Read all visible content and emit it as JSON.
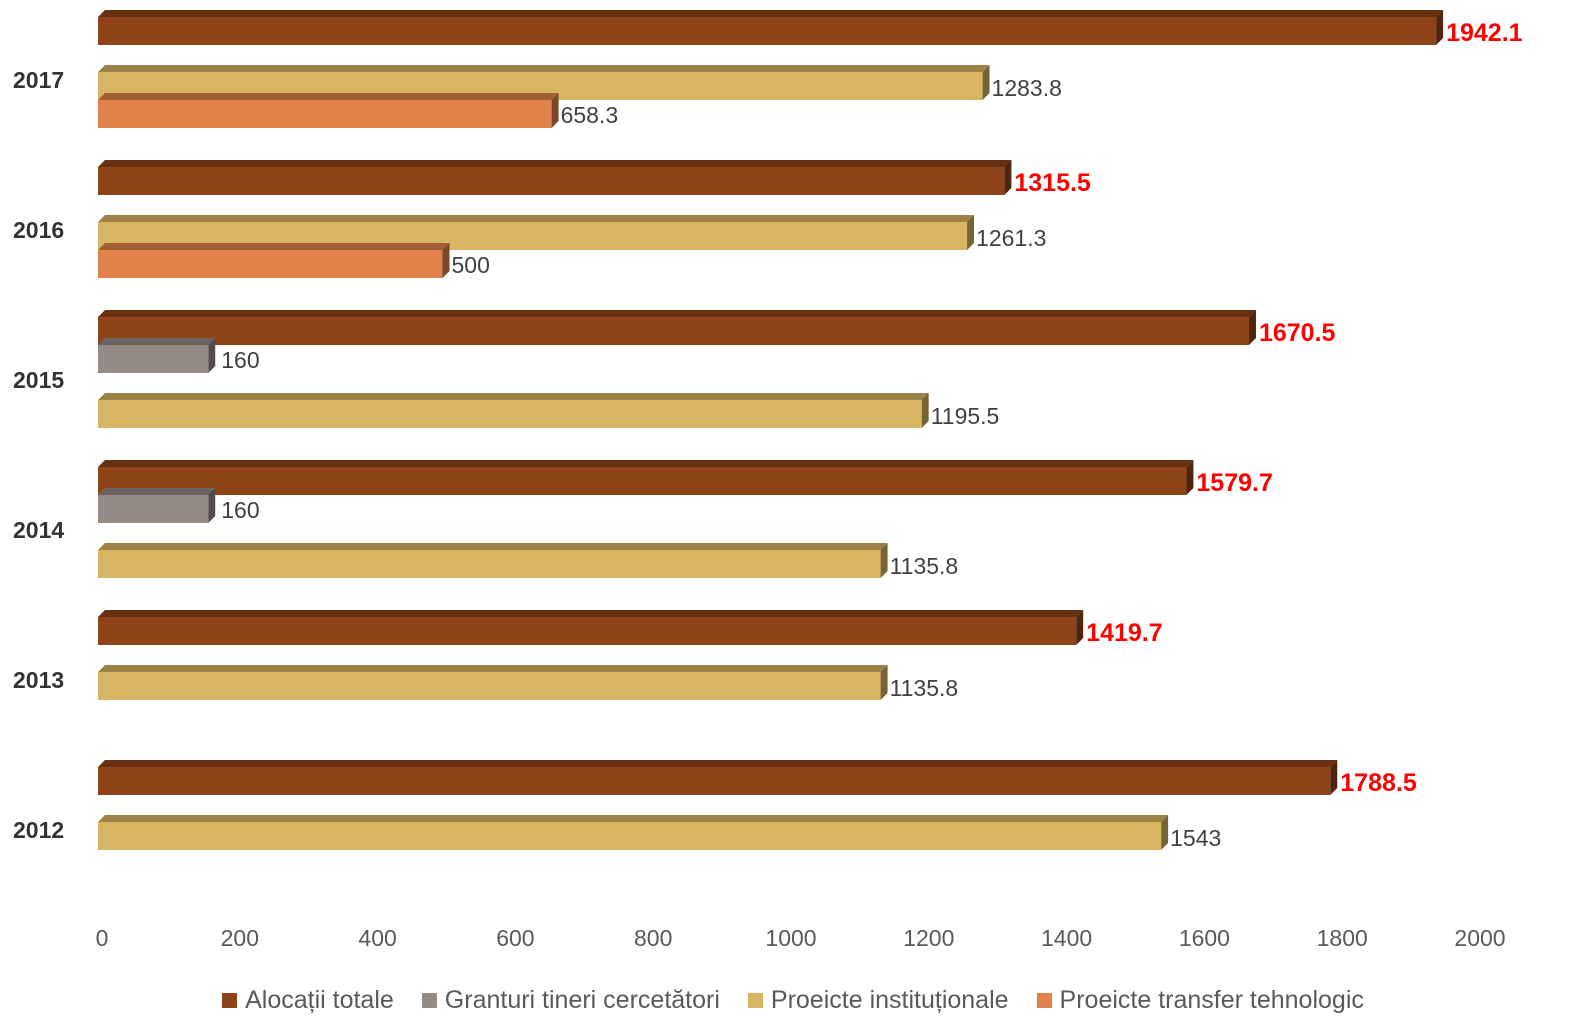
{
  "chart_data": {
    "type": "bar",
    "orientation": "horizontal",
    "style": "3d",
    "categories": [
      "2017",
      "2016",
      "2015",
      "2014",
      "2013",
      "2012"
    ],
    "series": [
      {
        "name": "Alocații totale",
        "color": "#8e4318",
        "values": [
          1942.1,
          1315.5,
          1670.5,
          1579.7,
          1419.7,
          1788.5
        ]
      },
      {
        "name": "Granturi tineri cercetători",
        "color": "#958b86",
        "values": [
          null,
          null,
          160,
          160,
          null,
          null
        ]
      },
      {
        "name": "Proeicte instituționale",
        "color": "#d8b562",
        "values": [
          1283.8,
          1261.3,
          1195.5,
          1135.8,
          1135.8,
          1543
        ]
      },
      {
        "name": "Proeicte transfer tehnologic",
        "color": "#e0824a",
        "values": [
          658.3,
          500,
          null,
          null,
          null,
          null
        ]
      }
    ],
    "xlim": [
      0,
      2000
    ],
    "xticks": [
      0,
      200,
      400,
      600,
      800,
      1000,
      1200,
      1400,
      1600,
      1800,
      2000
    ],
    "total_label_color": "#ff0000",
    "legend": "bottom",
    "grid": false
  }
}
